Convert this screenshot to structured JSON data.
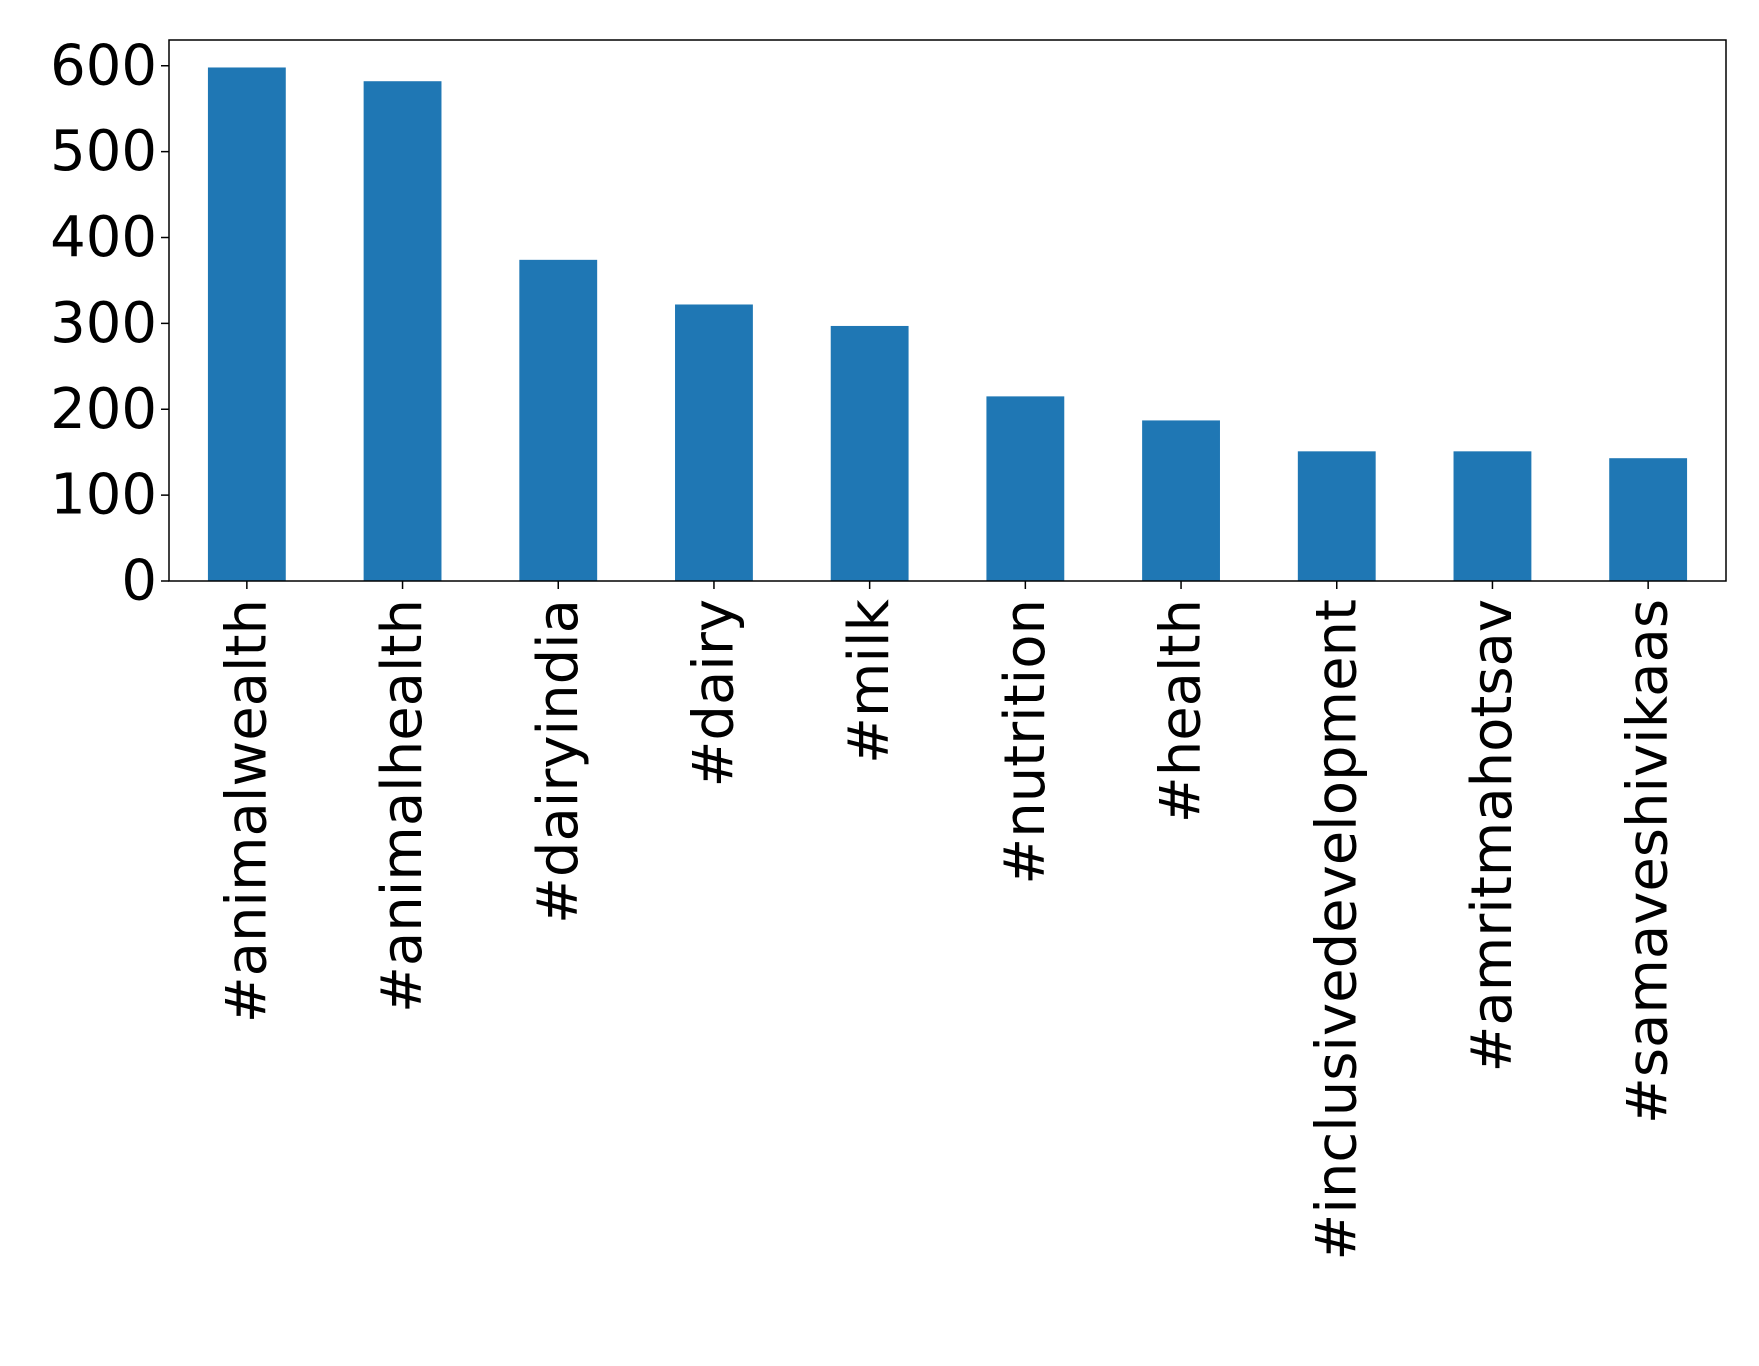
{
  "chart_data": {
    "type": "bar",
    "title": "",
    "xlabel": "",
    "ylabel": "",
    "categories": [
      "#animalwealth",
      "#animalhealth",
      "#dairyindia",
      "#dairy",
      "#milk",
      "#nutrition",
      "#health",
      "#inclusivedevelopment",
      "#amritmahotsav",
      "#samaveshivikaas"
    ],
    "values": [
      598,
      582,
      374,
      322,
      297,
      215,
      187,
      151,
      151,
      143
    ],
    "ylim": [
      0,
      630
    ],
    "yticks": [
      0,
      100,
      200,
      300,
      400,
      500,
      600
    ],
    "grid": false,
    "legend": "none",
    "bar_color": "#1f77b4"
  }
}
